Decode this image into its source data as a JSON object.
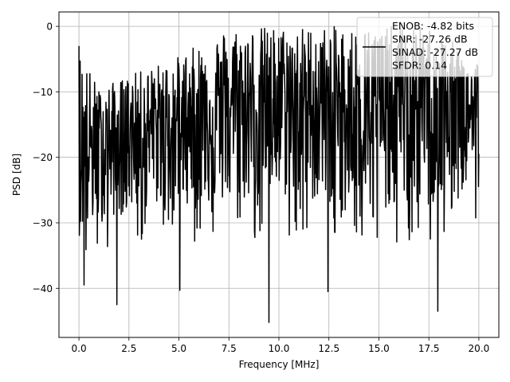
{
  "chart_data": {
    "type": "line",
    "title": "",
    "xlabel": "Frequency [MHz]",
    "ylabel": "PSD [dB]",
    "xlim": [
      -1.0,
      21.0
    ],
    "ylim": [
      -47.5,
      2.2
    ],
    "xticks": [
      0.0,
      2.5,
      5.0,
      7.5,
      10.0,
      12.5,
      15.0,
      17.5,
      20.0
    ],
    "xtick_labels": [
      "0.0",
      "2.5",
      "5.0",
      "7.5",
      "10.0",
      "12.5",
      "15.0",
      "17.5",
      "20.0"
    ],
    "yticks": [
      0,
      -10,
      -20,
      -30,
      -40
    ],
    "ytick_labels": [
      "0",
      "−10",
      "−20",
      "−30",
      "−40"
    ],
    "grid": true,
    "legend_position": "top-right",
    "legend_lines": [
      "ENOB: -4.82 bits",
      "SNR: -27.26 dB",
      "SINAD: -27.27 dB",
      "SFDR: 0.14"
    ],
    "series": [
      {
        "color": "#000000",
        "x_range": [
          0.0,
          20.0
        ],
        "sample_count": 1024,
        "envelope": {
          "x": [
            0.0,
            1.0,
            2.5,
            5.0,
            7.5,
            10.0,
            12.5,
            15.0,
            17.5,
            20.0
          ],
          "upper": [
            -3,
            -9.5,
            -7.5,
            -4.5,
            0,
            0,
            0,
            0,
            0,
            -5
          ],
          "center": [
            -20,
            -17.5,
            -16,
            -14,
            -12,
            -12,
            -12,
            -12,
            -12,
            -13
          ],
          "lower": [
            -32,
            -30,
            -28,
            -27,
            -27,
            -26,
            -27,
            -27,
            -28,
            -24
          ]
        },
        "notable_points": [
          {
            "x": 0.0,
            "y": -3.0
          },
          {
            "x": 0.25,
            "y": -39.5
          },
          {
            "x": 1.9,
            "y": -42.5
          },
          {
            "x": 5.05,
            "y": -40.3
          },
          {
            "x": 9.5,
            "y": -45.2
          },
          {
            "x": 12.45,
            "y": -40.5
          },
          {
            "x": 17.95,
            "y": -43.5
          }
        ]
      }
    ]
  }
}
